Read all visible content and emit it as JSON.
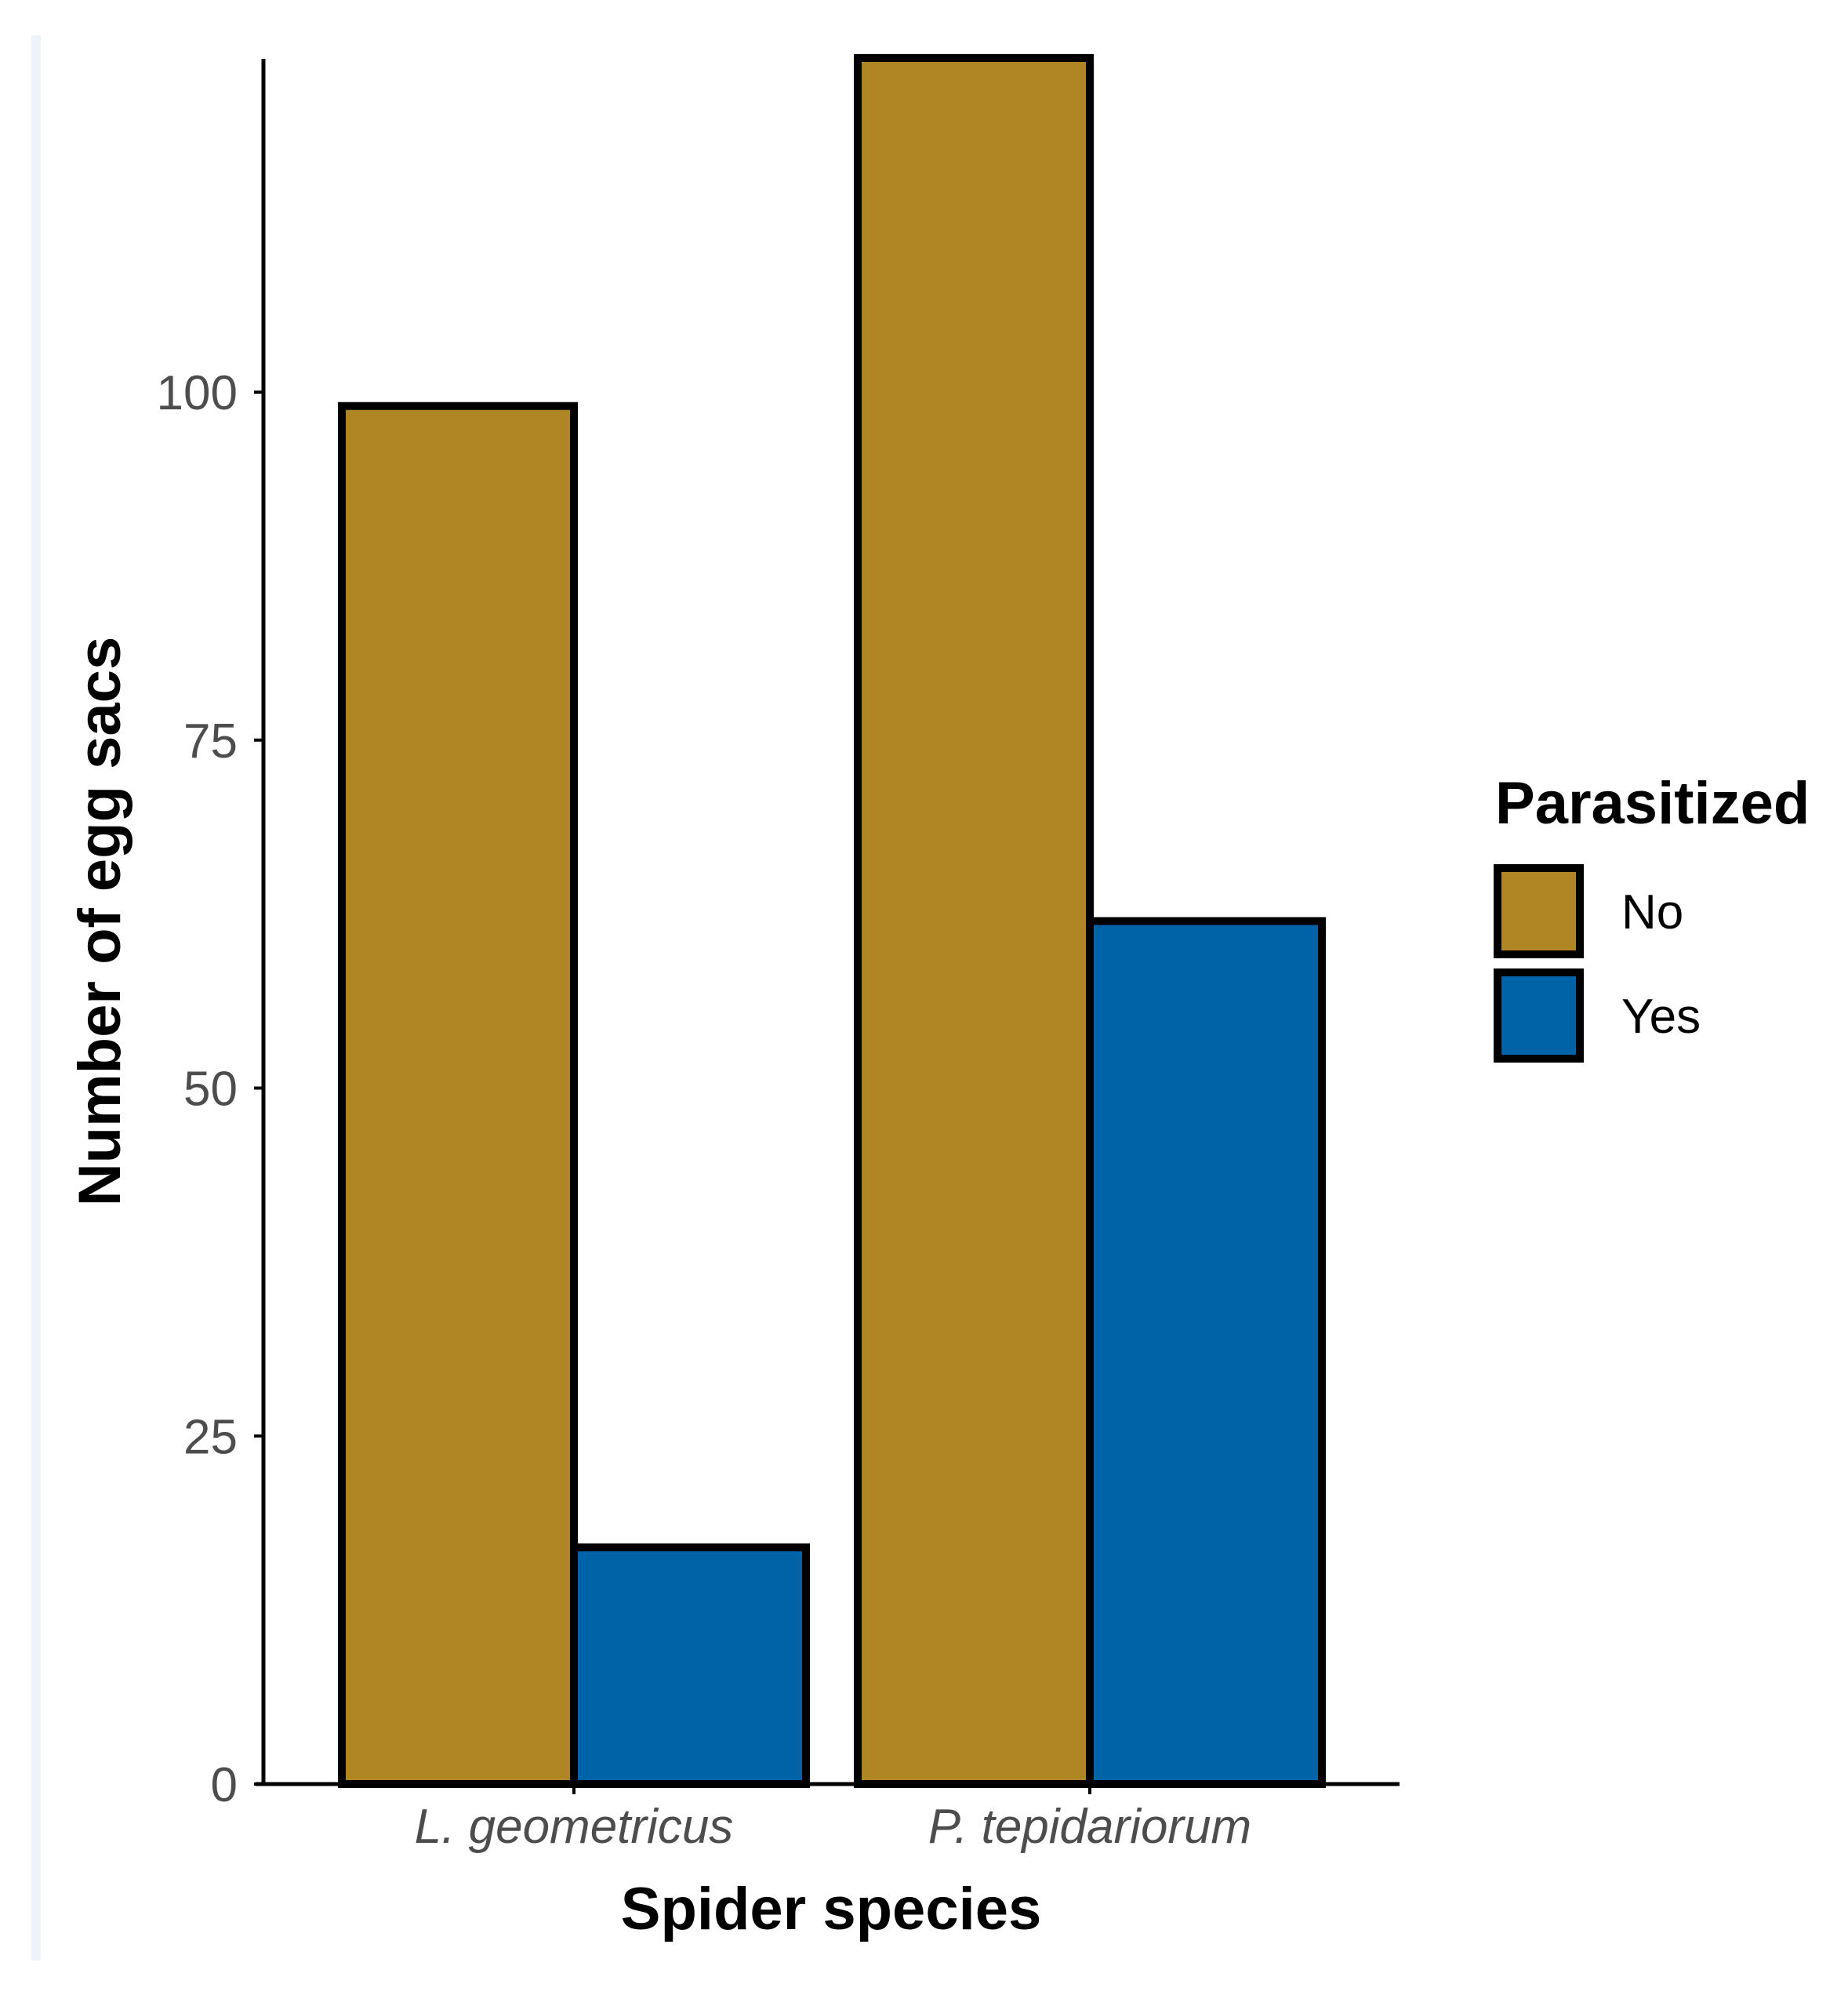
{
  "chart_data": {
    "type": "bar",
    "title": "",
    "xlabel": "Spider species",
    "ylabel": "Number of egg sacs",
    "categories": [
      "L. geometricus",
      "P. tepidariorum"
    ],
    "series": [
      {
        "name": "No",
        "values": [
          99,
          124
        ],
        "color": "#b08524"
      },
      {
        "name": "Yes",
        "values": [
          17,
          62
        ],
        "color": "#0063a8"
      }
    ],
    "ylim": [
      0,
      124
    ],
    "yticks": [
      0,
      25,
      50,
      75,
      100
    ],
    "ytick_labels": [
      "0",
      "25",
      "50",
      "75",
      "100"
    ],
    "legend": {
      "title": "Parasitized",
      "placement": "right",
      "entries": [
        "No",
        "Yes"
      ]
    },
    "grid": false
  }
}
